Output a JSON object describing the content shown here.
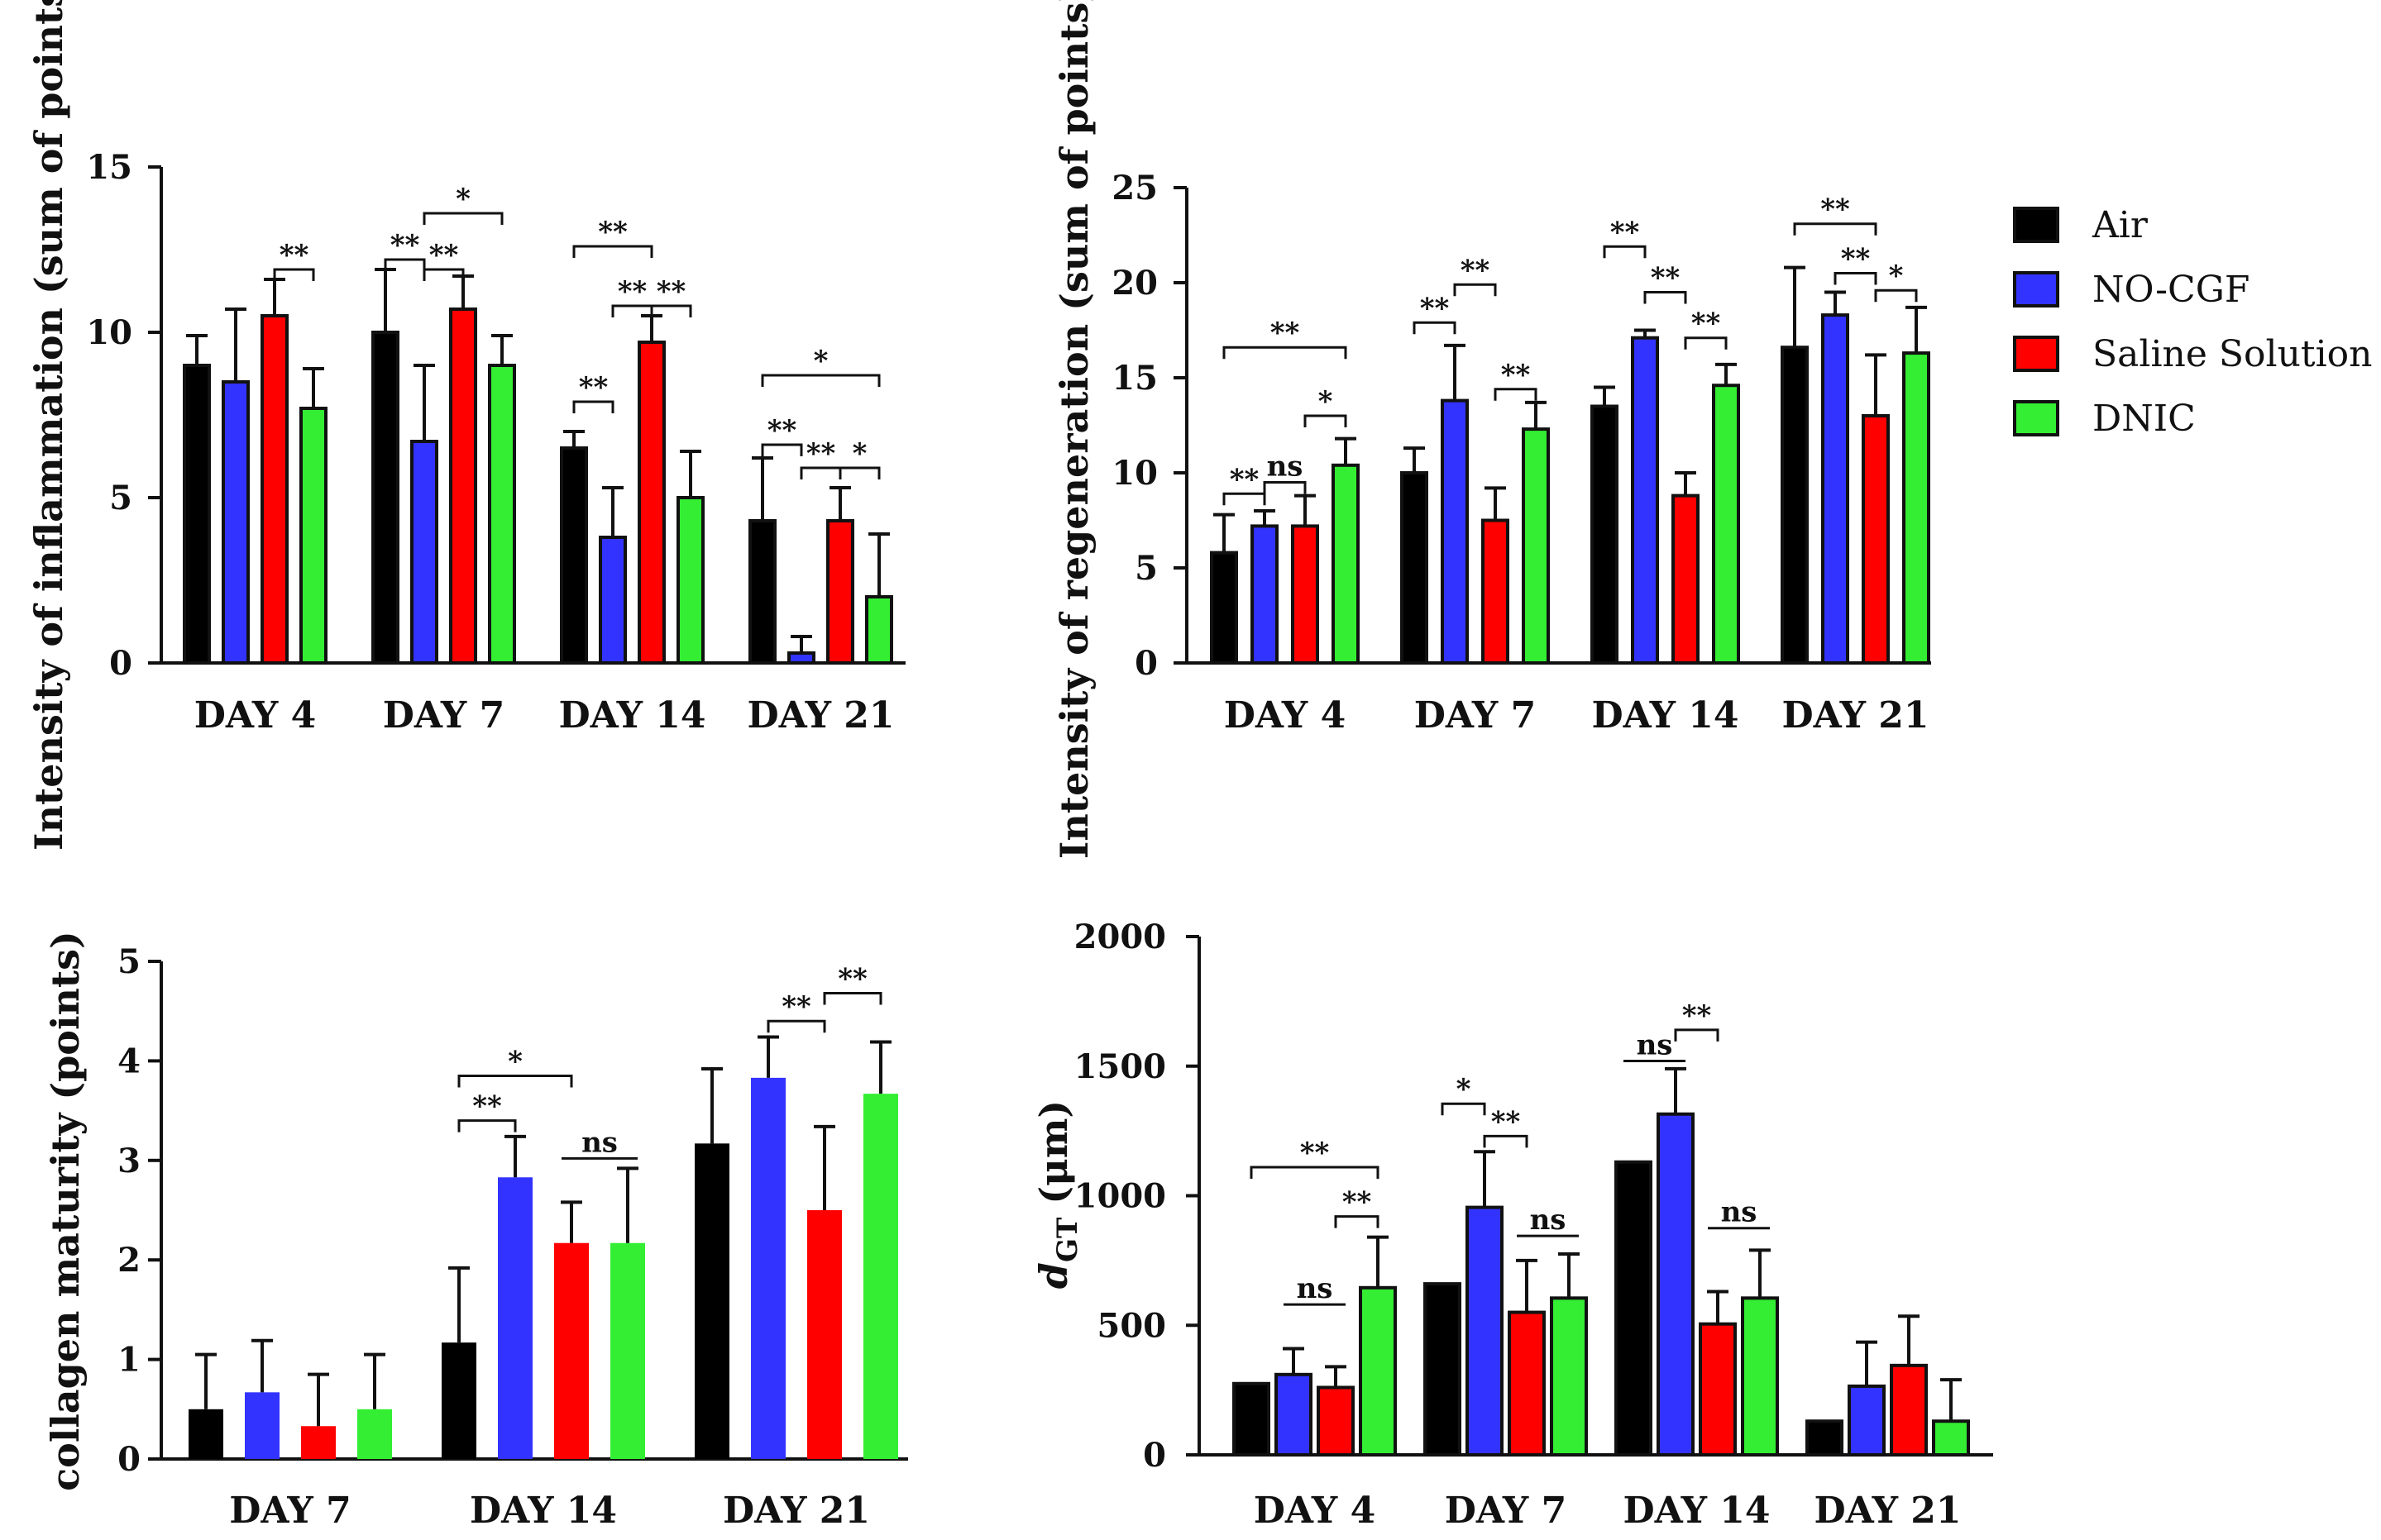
{
  "colors": {
    "Air": "#000000",
    "NO-CGF": "#3333ff",
    "Saline Solution": "#ff0000",
    "DNIC": "#33ee33"
  },
  "legend": {
    "entries": [
      {
        "label": "Air",
        "color": "#000000"
      },
      {
        "label": "NO-CGF",
        "color": "#3333ff"
      },
      {
        "label": "Saline Solution",
        "color": "#ff0000"
      },
      {
        "label": "DNIC",
        "color": "#33ee33"
      }
    ]
  },
  "chart_data": [
    {
      "type": "bar",
      "id": "inflammation",
      "title": "",
      "ylabel": "Intensity of inflammation (sum of points)",
      "xlabel": "",
      "ylim": [
        0,
        15
      ],
      "yticks": [
        0,
        5,
        10,
        15
      ],
      "categories": [
        "DAY 4",
        "DAY 7",
        "DAY 14",
        "DAY 21"
      ],
      "series": [
        {
          "name": "Air",
          "values": [
            9.0,
            10.0,
            6.5,
            4.3
          ],
          "errors": [
            0.9,
            1.9,
            0.5,
            1.9
          ]
        },
        {
          "name": "NO-CGF",
          "values": [
            8.5,
            6.7,
            3.8,
            0.3
          ],
          "errors": [
            2.2,
            2.3,
            1.5,
            0.5
          ]
        },
        {
          "name": "Saline Solution",
          "values": [
            10.5,
            10.7,
            9.7,
            4.3
          ],
          "errors": [
            1.1,
            1.0,
            0.8,
            1.0
          ]
        },
        {
          "name": "DNIC",
          "values": [
            7.7,
            9.0,
            5.0,
            2.0
          ],
          "errors": [
            1.2,
            0.9,
            1.4,
            1.9
          ]
        }
      ],
      "annotations": [
        {
          "cat": 0,
          "a": 2,
          "b": 3,
          "y": 11.9,
          "label": "**"
        },
        {
          "cat": 1,
          "a": 0,
          "b": 1,
          "y": 12.2,
          "label": "**"
        },
        {
          "cat": 1,
          "a": 1,
          "b": 3,
          "y": 13.6,
          "label": "*"
        },
        {
          "cat": 1,
          "a": 1,
          "b": 2,
          "y": 11.9,
          "label": "**"
        },
        {
          "cat": 2,
          "a": 0,
          "b": 2,
          "y": 12.6,
          "label": "**"
        },
        {
          "cat": 2,
          "a": 0,
          "b": 1,
          "y": 7.9,
          "label": "**"
        },
        {
          "cat": 2,
          "a": 2,
          "b": 1,
          "y": 10.8,
          "label": "**"
        },
        {
          "cat": 2,
          "a": 2,
          "b": 3,
          "y": 10.8,
          "label": "**"
        },
        {
          "cat": 3,
          "a": 0,
          "b": 3,
          "y": 8.7,
          "label": "*"
        },
        {
          "cat": 3,
          "a": 0,
          "b": 1,
          "y": 6.6,
          "label": "**"
        },
        {
          "cat": 3,
          "a": 2,
          "b": 1,
          "y": 5.9,
          "label": "**"
        },
        {
          "cat": 3,
          "a": 2,
          "b": 3,
          "y": 5.9,
          "label": "*"
        }
      ]
    },
    {
      "type": "bar",
      "id": "regeneration",
      "title": "",
      "ylabel": "Intensity of regeneration (sum of points)",
      "xlabel": "",
      "ylim": [
        0,
        25
      ],
      "yticks": [
        0,
        5,
        10,
        15,
        20,
        25
      ],
      "categories": [
        "DAY 4",
        "DAY 7",
        "DAY 14",
        "DAY 21"
      ],
      "series": [
        {
          "name": "Air",
          "values": [
            5.8,
            10.0,
            13.5,
            16.6
          ],
          "errors": [
            2.0,
            1.3,
            1.0,
            4.2
          ]
        },
        {
          "name": "NO-CGF",
          "values": [
            7.2,
            13.8,
            17.1,
            18.3
          ],
          "errors": [
            0.8,
            2.9,
            0.4,
            1.2
          ]
        },
        {
          "name": "Saline Solution",
          "values": [
            7.2,
            7.5,
            8.8,
            13.0
          ],
          "errors": [
            1.6,
            1.7,
            1.2,
            3.2
          ]
        },
        {
          "name": "DNIC",
          "values": [
            10.4,
            12.3,
            14.6,
            16.3
          ],
          "errors": [
            1.4,
            1.4,
            1.1,
            2.4
          ]
        }
      ],
      "annotations": [
        {
          "cat": 0,
          "a": 0,
          "b": 3,
          "y": 16.6,
          "label": "**"
        },
        {
          "cat": 0,
          "a": 2,
          "b": 3,
          "y": 13.0,
          "label": "*"
        },
        {
          "cat": 0,
          "a": 1,
          "b": 2,
          "y": 9.5,
          "label": "ns"
        },
        {
          "cat": 0,
          "a": 0,
          "b": 1,
          "y": 8.9,
          "label": "**"
        },
        {
          "cat": 1,
          "a": 0,
          "b": 1,
          "y": 17.9,
          "label": "**"
        },
        {
          "cat": 1,
          "a": 1,
          "b": 2,
          "y": 19.9,
          "label": "**"
        },
        {
          "cat": 1,
          "a": 2,
          "b": 3,
          "y": 14.4,
          "label": "**"
        },
        {
          "cat": 2,
          "a": 0,
          "b": 1,
          "y": 21.9,
          "label": "**"
        },
        {
          "cat": 2,
          "a": 1,
          "b": 2,
          "y": 19.5,
          "label": "**"
        },
        {
          "cat": 2,
          "a": 2,
          "b": 3,
          "y": 17.1,
          "label": "**"
        },
        {
          "cat": 3,
          "a": 0,
          "b": 2,
          "y": 23.1,
          "label": "**"
        },
        {
          "cat": 3,
          "a": 1,
          "b": 2,
          "y": 20.5,
          "label": "**"
        },
        {
          "cat": 3,
          "a": 2,
          "b": 3,
          "y": 19.6,
          "label": "*"
        }
      ]
    },
    {
      "type": "bar",
      "id": "collagen",
      "title": "",
      "ylabel": "collagen maturity (points)",
      "xlabel": "",
      "ylim": [
        0,
        5
      ],
      "yticks": [
        0,
        1,
        2,
        3,
        4,
        5
      ],
      "categories": [
        "DAY 7",
        "DAY 14",
        "DAY 21"
      ],
      "series": [
        {
          "name": "Air",
          "values": [
            0.5,
            1.17,
            3.17
          ],
          "errors": [
            0.55,
            0.75,
            0.75
          ]
        },
        {
          "name": "NO-CGF",
          "values": [
            0.67,
            2.83,
            3.83
          ],
          "errors": [
            0.52,
            0.41,
            0.41
          ]
        },
        {
          "name": "Saline Solution",
          "values": [
            0.33,
            2.17,
            2.5
          ],
          "errors": [
            0.52,
            0.41,
            0.84
          ]
        },
        {
          "name": "DNIC",
          "values": [
            0.5,
            2.17,
            3.67
          ],
          "errors": [
            0.55,
            0.75,
            0.52
          ]
        }
      ],
      "annotations": [
        {
          "cat": 1,
          "a": 0,
          "b": 2,
          "y": 3.85,
          "label": "*"
        },
        {
          "cat": 1,
          "a": 0,
          "b": 1,
          "y": 3.4,
          "label": "**"
        },
        {
          "cat": 1,
          "a": 2,
          "b": 3,
          "y": 3.02,
          "label": "ns",
          "style": "line"
        },
        {
          "cat": 2,
          "a": 1,
          "b": 2,
          "y": 4.4,
          "label": "**"
        },
        {
          "cat": 2,
          "a": 2,
          "b": 3,
          "y": 4.68,
          "label": "**"
        }
      ]
    },
    {
      "type": "bar",
      "id": "dgt",
      "title": "",
      "ylabel": "dGT (μm)",
      "ylabel_main": "d",
      "ylabel_sub": "GT",
      "ylabel_unit": " (μm)",
      "xlabel": "",
      "ylim": [
        0,
        2000
      ],
      "yticks": [
        0,
        500,
        1000,
        1500,
        2000
      ],
      "categories": [
        "DAY 4",
        "DAY 7",
        "DAY 14",
        "DAY 21"
      ],
      "series": [
        {
          "name": "Air",
          "values": [
            275,
            660,
            1130,
            130
          ],
          "errors": [
            0,
            0,
            0,
            0
          ]
        },
        {
          "name": "NO-CGF",
          "values": [
            310,
            955,
            1315,
            265
          ],
          "errors": [
            100,
            215,
            175,
            170
          ]
        },
        {
          "name": "Saline Solution",
          "values": [
            260,
            550,
            505,
            345
          ],
          "errors": [
            80,
            200,
            125,
            190
          ]
        },
        {
          "name": "DNIC",
          "values": [
            645,
            605,
            605,
            130
          ],
          "errors": [
            195,
            170,
            185,
            160
          ]
        }
      ],
      "annotations": [
        {
          "cat": 0,
          "a": 0,
          "b": 3,
          "y": 1110,
          "label": "**"
        },
        {
          "cat": 0,
          "a": 2,
          "b": 3,
          "y": 920,
          "label": "**"
        },
        {
          "cat": 0,
          "a": 1,
          "b": 2,
          "y": 580,
          "label": "ns",
          "style": "line"
        },
        {
          "cat": 1,
          "a": 0,
          "b": 1,
          "y": 1355,
          "label": "*"
        },
        {
          "cat": 1,
          "a": 1,
          "b": 2,
          "y": 1230,
          "label": "**"
        },
        {
          "cat": 1,
          "a": 2,
          "b": 3,
          "y": 845,
          "label": "ns",
          "style": "line"
        },
        {
          "cat": 2,
          "a": 0,
          "b": 1,
          "y": 1520,
          "label": "ns",
          "style": "line"
        },
        {
          "cat": 2,
          "a": 1,
          "b": 2,
          "y": 1640,
          "label": "**"
        },
        {
          "cat": 2,
          "a": 2,
          "b": 3,
          "y": 875,
          "label": "ns",
          "style": "line"
        }
      ]
    }
  ]
}
